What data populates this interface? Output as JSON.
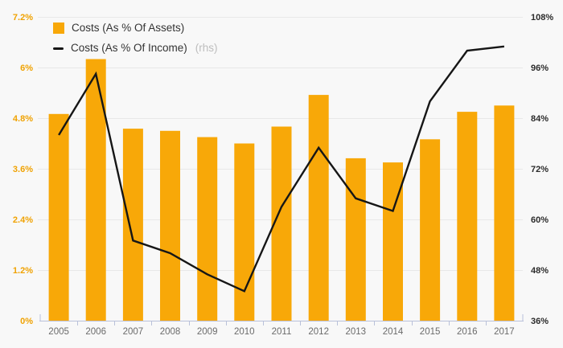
{
  "chart_data": {
    "type": "combo-bar-line",
    "title": "",
    "categories": [
      "2005",
      "2006",
      "2007",
      "2008",
      "2009",
      "2010",
      "2011",
      "2012",
      "2013",
      "2014",
      "2015",
      "2016",
      "2017"
    ],
    "series": [
      {
        "name": "Costs (As % Of Assets)",
        "type": "bar",
        "axis": "left",
        "color": "#F8A808",
        "values": [
          4.9,
          6.2,
          4.55,
          4.5,
          4.35,
          4.2,
          4.6,
          5.35,
          3.85,
          3.75,
          4.3,
          4.95,
          5.1
        ]
      },
      {
        "name": "Costs (As % Of Income)",
        "type": "line",
        "axis": "right",
        "axis_note": "(rhs)",
        "color": "#161616",
        "values": [
          80,
          94.5,
          55,
          52,
          47,
          43,
          63,
          77,
          65,
          62,
          88,
          100,
          101
        ]
      }
    ],
    "left_axis": {
      "min": 0,
      "max": 7.2,
      "ticks": [
        "0%",
        "1.2%",
        "2.4%",
        "3.6%",
        "4.8%",
        "6%",
        "7.2%"
      ],
      "label_color": "#F0A202"
    },
    "right_axis": {
      "min": 36,
      "max": 108,
      "ticks": [
        "36%",
        "48%",
        "60%",
        "72%",
        "84%",
        "96%",
        "108%"
      ],
      "label_color": "#2B2B2B"
    },
    "grid": true,
    "legend_position": "top-left",
    "background": "#F8F8F8",
    "gridline_color": "#E8E8E8",
    "axisline_color": "#B9C1DA",
    "x_label_color": "#6B6B6B"
  }
}
